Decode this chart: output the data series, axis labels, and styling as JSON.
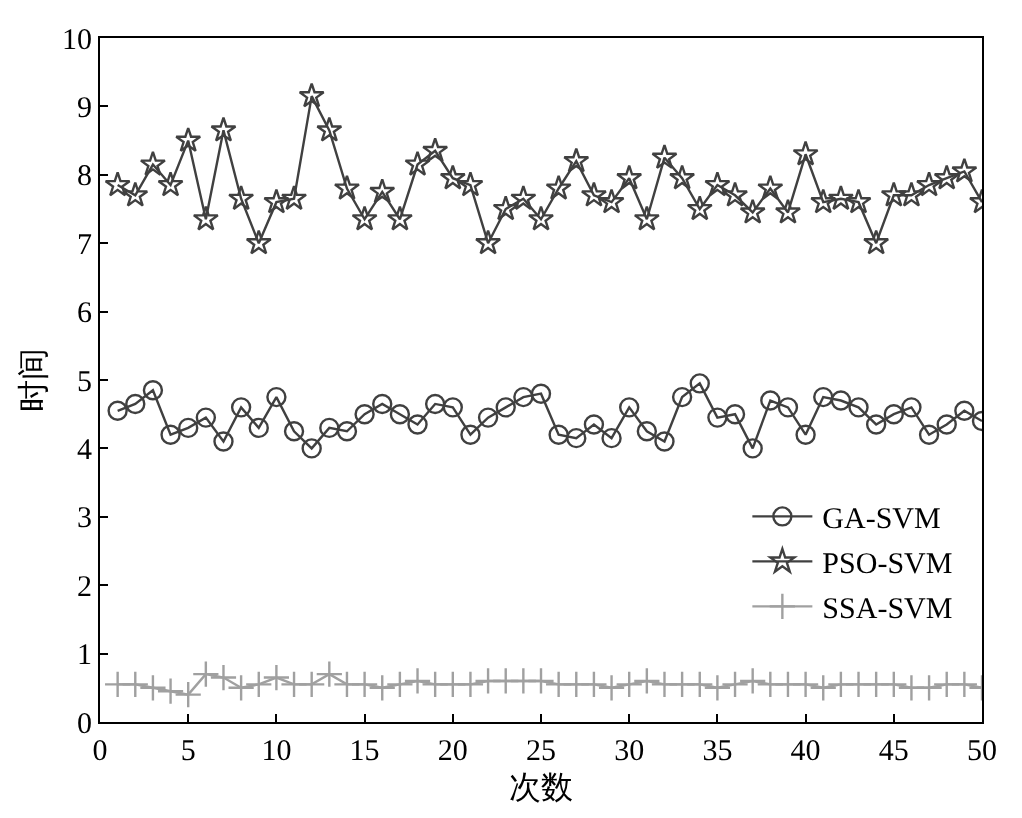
{
  "chart_data": {
    "type": "line",
    "xlabel": "次数",
    "ylabel": "时间",
    "xlim": [
      0,
      50
    ],
    "ylim": [
      0,
      10
    ],
    "xticks": [
      0,
      5,
      10,
      15,
      20,
      25,
      30,
      35,
      40,
      45,
      50
    ],
    "yticks": [
      0,
      1,
      2,
      3,
      4,
      5,
      6,
      7,
      8,
      9,
      10
    ],
    "grid": false,
    "legend": "bottom right",
    "x": [
      1,
      2,
      3,
      4,
      5,
      6,
      7,
      8,
      9,
      10,
      11,
      12,
      13,
      14,
      15,
      16,
      17,
      18,
      19,
      20,
      21,
      22,
      23,
      24,
      25,
      26,
      27,
      28,
      29,
      30,
      31,
      32,
      33,
      34,
      35,
      36,
      37,
      38,
      39,
      40,
      41,
      42,
      43,
      44,
      45,
      46,
      47,
      48,
      49,
      50
    ],
    "series": [
      {
        "name": "GA-SVM",
        "color": "#404040",
        "marker": "circle",
        "values": [
          4.55,
          4.65,
          4.85,
          4.2,
          4.3,
          4.45,
          4.1,
          4.6,
          4.3,
          4.75,
          4.25,
          4.0,
          4.3,
          4.25,
          4.5,
          4.65,
          4.5,
          4.35,
          4.65,
          4.6,
          4.2,
          4.45,
          4.6,
          4.75,
          4.8,
          4.2,
          4.15,
          4.35,
          4.15,
          4.6,
          4.25,
          4.1,
          4.75,
          4.95,
          4.45,
          4.5,
          4.0,
          4.7,
          4.6,
          4.2,
          4.75,
          4.7,
          4.6,
          4.35,
          4.5,
          4.6,
          4.2,
          4.35,
          4.55,
          4.4
        ]
      },
      {
        "name": "PSO-SVM",
        "color": "#404040",
        "marker": "star",
        "values": [
          7.85,
          7.7,
          8.15,
          7.85,
          8.5,
          7.35,
          8.65,
          7.65,
          7.0,
          7.6,
          7.65,
          9.15,
          8.65,
          7.8,
          7.35,
          7.75,
          7.35,
          8.15,
          8.35,
          7.95,
          7.85,
          7.0,
          7.5,
          7.65,
          7.35,
          7.8,
          8.2,
          7.7,
          7.6,
          7.95,
          7.35,
          8.25,
          7.95,
          7.5,
          7.85,
          7.7,
          7.45,
          7.8,
          7.45,
          8.3,
          7.6,
          7.65,
          7.6,
          7.0,
          7.7,
          7.7,
          7.85,
          7.95,
          8.05,
          7.6
        ]
      },
      {
        "name": "SSA-SVM",
        "color": "#a0a0a0",
        "marker": "cross",
        "values": [
          0.55,
          0.55,
          0.5,
          0.45,
          0.4,
          0.7,
          0.65,
          0.5,
          0.55,
          0.65,
          0.55,
          0.55,
          0.7,
          0.55,
          0.55,
          0.5,
          0.55,
          0.6,
          0.55,
          0.55,
          0.55,
          0.6,
          0.6,
          0.6,
          0.6,
          0.55,
          0.55,
          0.55,
          0.5,
          0.55,
          0.6,
          0.55,
          0.55,
          0.55,
          0.5,
          0.55,
          0.6,
          0.55,
          0.55,
          0.55,
          0.5,
          0.55,
          0.55,
          0.55,
          0.55,
          0.5,
          0.5,
          0.55,
          0.55,
          0.5
        ]
      }
    ]
  }
}
